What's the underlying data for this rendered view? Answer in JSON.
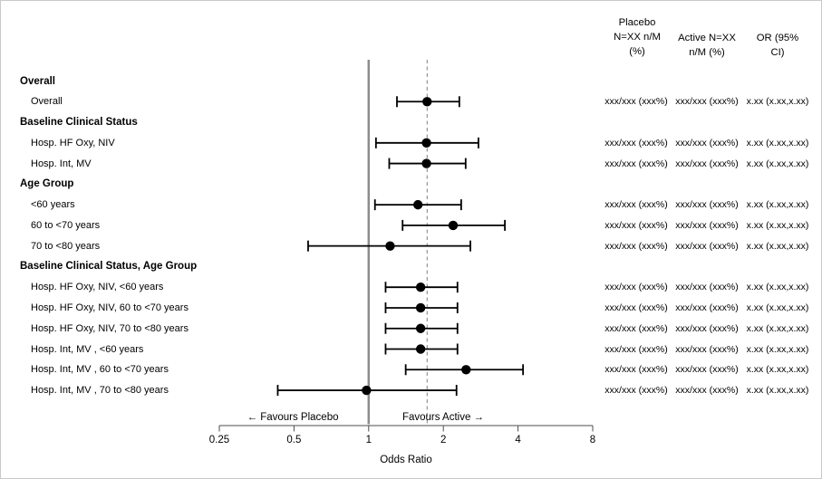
{
  "figure": {
    "background": "#ffffff",
    "border_color": "#c9c9c9",
    "text_color": "#000000",
    "marker_color": "#000000",
    "reference_line_color": "#8c8c8c",
    "dashed_line_color": "#7f7f7f",
    "axis_color": "#4d4d4d"
  },
  "columns": {
    "placebo_header": "Placebo\nN=XX n/M\n(%)",
    "active_header": "Active N=XX\nn/M (%)",
    "or_header": "OR (95%\nCI)"
  },
  "axis": {
    "label": "Odds Ratio",
    "ticks": [
      0.25,
      0.5,
      1,
      2,
      4,
      8
    ],
    "min": 0.25,
    "max": 8,
    "scale": "log2",
    "favours_left": "← Favours Placebo",
    "favours_right": "Favours Active →",
    "reference_line": 1,
    "dashed_reference_line": 1.72
  },
  "chart_data": {
    "type": "scatter",
    "subtype": "forest-plot",
    "xlabel": "Odds Ratio",
    "x_ticks": [
      0.25,
      0.5,
      1,
      2,
      4,
      8
    ],
    "xlim": [
      0.25,
      8
    ],
    "grid": false,
    "rows": [
      {
        "label": "Overall",
        "header": true
      },
      {
        "label": "Overall",
        "est": 1.72,
        "lo": 1.3,
        "hi": 2.32,
        "placebo": "xxx/xxx (xxx%)",
        "active": "xxx/xxx (xxx%)",
        "or_ci": "x.xx (x.xx,x.xx)"
      },
      {
        "label": "Baseline Clinical Status",
        "header": true
      },
      {
        "label": "Hosp. HF Oxy, NIV",
        "est": 1.71,
        "lo": 1.07,
        "hi": 2.77,
        "placebo": "xxx/xxx (xxx%)",
        "active": "xxx/xxx (xxx%)",
        "or_ci": "x.xx (x.xx,x.xx)"
      },
      {
        "label": "Hosp. Int, MV",
        "est": 1.71,
        "lo": 1.21,
        "hi": 2.46,
        "placebo": "xxx/xxx (xxx%)",
        "active": "xxx/xxx (xxx%)",
        "or_ci": "x.xx (x.xx,x.xx)"
      },
      {
        "label": "Age Group",
        "header": true
      },
      {
        "label": "<60 years",
        "est": 1.58,
        "lo": 1.06,
        "hi": 2.36,
        "placebo": "xxx/xxx (xxx%)",
        "active": "xxx/xxx (xxx%)",
        "or_ci": "x.xx (x.xx,x.xx)"
      },
      {
        "label": "60 to <70 years",
        "est": 2.19,
        "lo": 1.37,
        "hi": 3.54,
        "placebo": "xxx/xxx (xxx%)",
        "active": "xxx/xxx (xxx%)",
        "or_ci": "x.xx (x.xx,x.xx)"
      },
      {
        "label": "70 to <80 years",
        "est": 1.22,
        "lo": 0.57,
        "hi": 2.57,
        "placebo": "xxx/xxx (xxx%)",
        "active": "xxx/xxx (xxx%)",
        "or_ci": "x.xx (x.xx,x.xx)"
      },
      {
        "label": "Baseline Clinical Status, Age Group",
        "header": true
      },
      {
        "label": "Hosp. HF Oxy, NIV, <60 years",
        "est": 1.62,
        "lo": 1.17,
        "hi": 2.28,
        "placebo": "xxx/xxx (xxx%)",
        "active": "xxx/xxx (xxx%)",
        "or_ci": "x.xx (x.xx,x.xx)"
      },
      {
        "label": "Hosp. HF Oxy, NIV, 60 to <70 years",
        "est": 1.62,
        "lo": 1.17,
        "hi": 2.28,
        "placebo": "xxx/xxx (xxx%)",
        "active": "xxx/xxx (xxx%)",
        "or_ci": "x.xx (x.xx,x.xx)"
      },
      {
        "label": "Hosp. HF Oxy, NIV, 70 to <80 years",
        "est": 1.62,
        "lo": 1.17,
        "hi": 2.28,
        "placebo": "xxx/xxx (xxx%)",
        "active": "xxx/xxx (xxx%)",
        "or_ci": "x.xx (x.xx,x.xx)"
      },
      {
        "label": "Hosp. Int, MV , <60 years",
        "est": 1.62,
        "lo": 1.17,
        "hi": 2.28,
        "placebo": "xxx/xxx (xxx%)",
        "active": "xxx/xxx (xxx%)",
        "or_ci": "x.xx (x.xx,x.xx)"
      },
      {
        "label": "Hosp. Int, MV , 60 to <70 years",
        "est": 2.47,
        "lo": 1.41,
        "hi": 4.19,
        "placebo": "xxx/xxx (xxx%)",
        "active": "xxx/xxx (xxx%)",
        "or_ci": "x.xx (x.xx,x.xx)"
      },
      {
        "label": "Hosp. Int, MV , 70 to <80 years",
        "est": 0.98,
        "lo": 0.43,
        "hi": 2.26,
        "placebo": "xxx/xxx (xxx%)",
        "active": "xxx/xxx (xxx%)",
        "or_ci": "x.xx (x.xx,x.xx)"
      }
    ]
  }
}
